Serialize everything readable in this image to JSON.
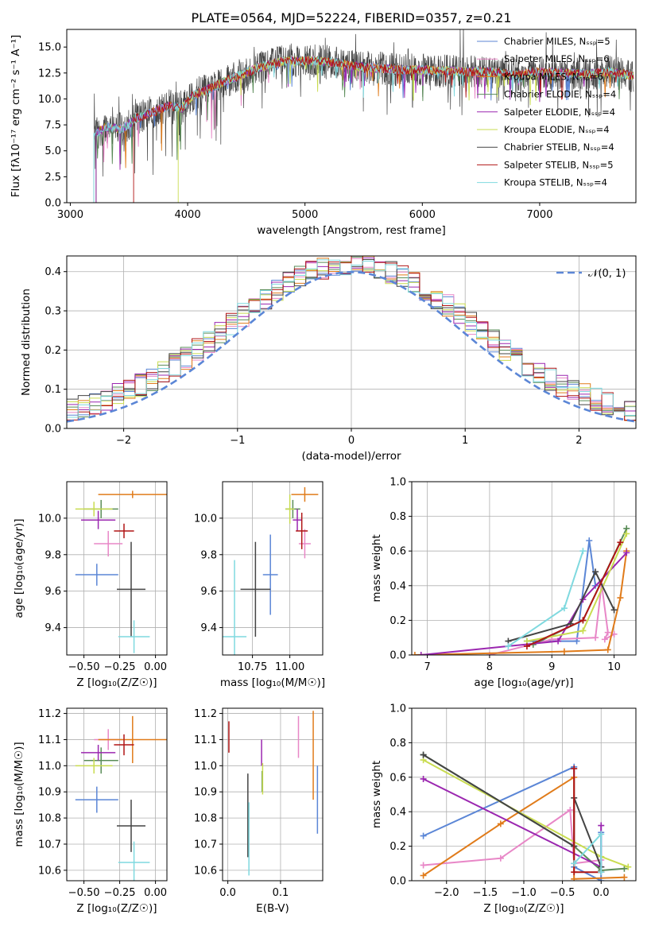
{
  "chart_data": [
    {
      "type": "line",
      "title": "PLATE=0564, MJD=52224, FIBERID=0357, z=0.21",
      "xlabel": "wavelength [Angstrom, rest frame]",
      "ylabel": "Flux [fλ10⁻¹⁷ erg cm⁻² s⁻¹ A⁻¹]",
      "xlim": [
        2970,
        7820
      ],
      "ylim": [
        0,
        16.7
      ],
      "xticks": [
        "3000",
        "4000",
        "5000",
        "6000",
        "7000"
      ],
      "yticks": [
        "0.0",
        "2.5",
        "5.0",
        "7.5",
        "10.0",
        "12.5",
        "15.0"
      ],
      "grid": false,
      "legend_position": "right",
      "spectrum_envelope": {
        "x": [
          3200,
          3300,
          3450,
          3550,
          3700,
          3850,
          3950,
          4050,
          4150,
          4300,
          4450,
          4600,
          4800,
          5000,
          5200,
          5400,
          5600,
          5800,
          6000,
          6200,
          6400,
          6600,
          6800,
          7000,
          7200,
          7400,
          7600,
          7800
        ],
        "y": [
          6.5,
          7.3,
          7.1,
          8.1,
          8.7,
          9.4,
          9.1,
          10.4,
          10.8,
          11.6,
          12.3,
          13.0,
          13.6,
          13.7,
          13.6,
          13.2,
          13.0,
          12.8,
          12.8,
          12.7,
          12.6,
          12.6,
          12.3,
          12.6,
          12.5,
          12.4,
          12.6,
          12.2
        ]
      },
      "model_cutoffs": [
        {
          "model": "Salpeter STELIB",
          "x_start": 3540
        },
        {
          "model": "Kroupa ELODIE",
          "x_start": 3920
        },
        {
          "model": "Chabrier STELIB",
          "x_start": 3200
        },
        {
          "model": "Kroupa STELIB",
          "x_start": 3200
        }
      ],
      "series": [
        {
          "name": "Chabrier MILES, Nₛₛₚ=5",
          "color": "#5b86d6"
        },
        {
          "name": "Salpeter MILES, Nₛₛₚ=6",
          "color": "#e887c7"
        },
        {
          "name": "Kroupa MILES, Nₛₛₚ=6",
          "color": "#e07b1a"
        },
        {
          "name": "Chabrier ELODIE, Nₛₛₚ=4",
          "color": "#5a8c58"
        },
        {
          "name": "Salpeter ELODIE, Nₛₛₚ=4",
          "color": "#9b27b0"
        },
        {
          "name": "Kroupa ELODIE, Nₛₛₚ=4",
          "color": "#c9dc50"
        },
        {
          "name": "Chabrier STELIB, Nₛₛₚ=4",
          "color": "#444444"
        },
        {
          "name": "Salpeter STELIB, Nₛₛₚ=5",
          "color": "#b01515"
        },
        {
          "name": "Kroupa STELIB, Nₛₛₚ=4",
          "color": "#7fd9df"
        }
      ]
    },
    {
      "type": "step",
      "xlabel": "(data-model)/error",
      "ylabel": "Normed distribution",
      "xlim": [
        -2.5,
        2.5
      ],
      "ylim": [
        0,
        0.44
      ],
      "xticks": [
        "−2",
        "−1",
        "0",
        "1",
        "2"
      ],
      "yticks": [
        "0.0",
        "0.1",
        "0.2",
        "0.3",
        "0.4"
      ],
      "grid": true,
      "legend": "𝒩(0, 1)",
      "legend_position": "top-right",
      "bin_edges": [
        -2.5,
        -2.4,
        -2.3,
        -2.2,
        -2.1,
        -2.0,
        -1.9,
        -1.8,
        -1.7,
        -1.6,
        -1.5,
        -1.4,
        -1.3,
        -1.2,
        -1.1,
        -1.0,
        -0.9,
        -0.8,
        -0.7,
        -0.6,
        -0.5,
        -0.4,
        -0.3,
        -0.2,
        -0.1,
        0.0,
        0.1,
        0.2,
        0.3,
        0.4,
        0.5,
        0.6,
        0.7,
        0.8,
        0.9,
        1.0,
        1.1,
        1.2,
        1.3,
        1.4,
        1.5,
        1.6,
        1.7,
        1.8,
        1.9,
        2.0,
        2.1,
        2.2,
        2.3,
        2.4,
        2.5
      ],
      "gaussian": {
        "mean": 0,
        "sigma": 1,
        "style": "dashed",
        "color": "#5b86d6"
      }
    },
    {
      "type": "scatter",
      "xlabel": "Z [log₁₀(Z/Z☉)]",
      "ylabel": "age  [log₁₀(age/yr)]",
      "xlim": [
        -0.62,
        0.08
      ],
      "ylim": [
        9.25,
        10.2
      ],
      "xticks": [
        "−0.50",
        "−0.25",
        "0.00"
      ],
      "yticks": [
        "9.4",
        "9.6",
        "9.8",
        "10.0"
      ],
      "grid": true,
      "points": [
        {
          "model": "Chabrier MILES",
          "x": -0.41,
          "xerr": 0.15,
          "y": 9.69,
          "yerr": 0.06,
          "color": "#5b86d6"
        },
        {
          "model": "Salpeter MILES",
          "x": -0.33,
          "xerr": 0.1,
          "y": 9.86,
          "yerr": 0.07,
          "color": "#e887c7"
        },
        {
          "model": "Kroupa MILES",
          "x": -0.16,
          "xerr": 0.24,
          "y": 10.13,
          "yerr": 0.02,
          "color": "#e07b1a"
        },
        {
          "model": "Chabrier ELODIE",
          "x": -0.38,
          "xerr": 0.12,
          "y": 10.05,
          "yerr": 0.05,
          "color": "#5a8c58"
        },
        {
          "model": "Salpeter ELODIE",
          "x": -0.4,
          "xerr": 0.12,
          "y": 9.99,
          "yerr": 0.05,
          "color": "#9b27b0"
        },
        {
          "model": "Kroupa ELODIE",
          "x": -0.43,
          "xerr": 0.13,
          "y": 10.05,
          "yerr": 0.04,
          "color": "#c9dc50"
        },
        {
          "model": "Chabrier STELIB",
          "x": -0.17,
          "xerr": 0.1,
          "y": 9.61,
          "yerr": 0.26,
          "color": "#444444"
        },
        {
          "model": "Salpeter STELIB",
          "x": -0.22,
          "xerr": 0.07,
          "y": 9.93,
          "yerr": 0.04,
          "color": "#b01515"
        },
        {
          "model": "Kroupa STELIB",
          "x": -0.15,
          "xerr": 0.11,
          "y": 9.35,
          "yerr": 0.09,
          "color": "#7fd9df"
        }
      ]
    },
    {
      "type": "scatter",
      "xlabel": "mass [log₁₀(M/M☉)]",
      "ylabel": "",
      "xlim": [
        10.55,
        11.22
      ],
      "ylim": [
        9.25,
        10.2
      ],
      "xticks": [
        "10.75",
        "11.00"
      ],
      "yticks": [
        "9.4",
        "9.6",
        "9.8",
        "10.0"
      ],
      "grid": true,
      "points": [
        {
          "model": "Chabrier MILES",
          "x": 10.87,
          "xerr": 0.05,
          "y": 9.69,
          "yerr": 0.22,
          "color": "#5b86d6"
        },
        {
          "model": "Salpeter MILES",
          "x": 11.1,
          "xerr": 0.04,
          "y": 9.86,
          "yerr": 0.08,
          "color": "#e887c7"
        },
        {
          "model": "Kroupa MILES",
          "x": 11.1,
          "xerr": 0.09,
          "y": 10.13,
          "yerr": 0.04,
          "color": "#e07b1a"
        },
        {
          "model": "Chabrier ELODIE",
          "x": 11.02,
          "xerr": 0.05,
          "y": 10.05,
          "yerr": 0.05,
          "color": "#5a8c58"
        },
        {
          "model": "Salpeter ELODIE",
          "x": 11.05,
          "xerr": 0.03,
          "y": 9.99,
          "yerr": 0.06,
          "color": "#9b27b0"
        },
        {
          "model": "Kroupa ELODIE",
          "x": 11.0,
          "xerr": 0.03,
          "y": 10.05,
          "yerr": 0.08,
          "color": "#c9dc50"
        },
        {
          "model": "Chabrier STELIB",
          "x": 10.77,
          "xerr": 0.1,
          "y": 9.61,
          "yerr": 0.26,
          "color": "#444444"
        },
        {
          "model": "Salpeter STELIB",
          "x": 11.08,
          "xerr": 0.04,
          "y": 9.93,
          "yerr": 0.1,
          "color": "#b01515"
        },
        {
          "model": "Kroupa STELIB",
          "x": 10.63,
          "xerr": 0.08,
          "y": 9.35,
          "yerr": 0.42,
          "color": "#7fd9df"
        }
      ]
    },
    {
      "type": "line",
      "xlabel": "age  [log₁₀(age/yr)]",
      "ylabel": "mass weight",
      "xlim": [
        6.75,
        10.35
      ],
      "ylim": [
        0,
        1.0
      ],
      "xticks": [
        "7",
        "8",
        "9",
        "10"
      ],
      "yticks": [
        "0.0",
        "0.2",
        "0.4",
        "0.6",
        "0.8",
        "1.0"
      ],
      "grid": true,
      "series": [
        {
          "name": "Chabrier MILES",
          "color": "#5b86d6",
          "x": [
            8.6,
            9.4,
            9.6,
            9.7
          ],
          "y": [
            0.08,
            0.08,
            0.66,
            0.4
          ]
        },
        {
          "name": "Salpeter MILES",
          "color": "#e887c7",
          "x": [
            8.0,
            9.0,
            9.7,
            9.8,
            9.9,
            9.85,
            10.0
          ],
          "y": [
            0.0,
            0.09,
            0.1,
            0.41,
            0.13,
            0.09,
            0.12
          ]
        },
        {
          "name": "Kroupa MILES",
          "color": "#e07b1a",
          "x": [
            6.8,
            9.2,
            9.9,
            10.1,
            10.2
          ],
          "y": [
            0.0,
            0.02,
            0.03,
            0.33,
            0.6
          ]
        },
        {
          "name": "Chabrier ELODIE",
          "color": "#5a8c58",
          "x": [
            8.7,
            9.5,
            10.2
          ],
          "y": [
            0.06,
            0.2,
            0.73
          ]
        },
        {
          "name": "Salpeter ELODIE",
          "color": "#9b27b0",
          "x": [
            6.9,
            9.1,
            9.5,
            10.2
          ],
          "y": [
            0.0,
            0.08,
            0.32,
            0.59
          ]
        },
        {
          "name": "Kroupa ELODIE",
          "color": "#c9dc50",
          "x": [
            8.6,
            9.5,
            10.2
          ],
          "y": [
            0.08,
            0.14,
            0.7
          ]
        },
        {
          "name": "Chabrier STELIB",
          "color": "#444444",
          "x": [
            8.3,
            9.3,
            9.7,
            10.0
          ],
          "y": [
            0.08,
            0.18,
            0.48,
            0.26
          ]
        },
        {
          "name": "Salpeter STELIB",
          "color": "#b01515",
          "x": [
            8.6,
            9.5,
            10.1
          ],
          "y": [
            0.05,
            0.2,
            0.65
          ]
        },
        {
          "name": "Kroupa STELIB",
          "color": "#7fd9df",
          "x": [
            8.3,
            9.2,
            9.5
          ],
          "y": [
            0.05,
            0.27,
            0.6
          ]
        }
      ]
    },
    {
      "type": "scatter",
      "xlabel": "Z [log₁₀(Z/Z☉)]",
      "ylabel": "mass [log₁₀(M/M☉)]",
      "xlim": [
        -0.62,
        0.08
      ],
      "ylim": [
        10.56,
        11.22
      ],
      "xticks": [
        "−0.50",
        "−0.25",
        "0.00"
      ],
      "yticks": [
        "10.6",
        "10.7",
        "10.8",
        "10.9",
        "11.0",
        "11.1",
        "11.2"
      ],
      "grid": true,
      "points": [
        {
          "model": "Chabrier MILES",
          "x": -0.41,
          "xerr": 0.15,
          "y": 10.87,
          "yerr": 0.05,
          "color": "#5b86d6"
        },
        {
          "model": "Salpeter MILES",
          "x": -0.33,
          "xerr": 0.1,
          "y": 11.1,
          "yerr": 0.04,
          "color": "#e887c7"
        },
        {
          "model": "Kroupa MILES",
          "x": -0.16,
          "xerr": 0.24,
          "y": 11.1,
          "yerr": 0.09,
          "color": "#e07b1a"
        },
        {
          "model": "Chabrier ELODIE",
          "x": -0.38,
          "xerr": 0.12,
          "y": 11.02,
          "yerr": 0.05,
          "color": "#5a8c58"
        },
        {
          "model": "Salpeter ELODIE",
          "x": -0.4,
          "xerr": 0.12,
          "y": 11.05,
          "yerr": 0.03,
          "color": "#9b27b0"
        },
        {
          "model": "Kroupa ELODIE",
          "x": -0.43,
          "xerr": 0.13,
          "y": 11.0,
          "yerr": 0.03,
          "color": "#c9dc50"
        },
        {
          "model": "Chabrier STELIB",
          "x": -0.17,
          "xerr": 0.1,
          "y": 10.77,
          "yerr": 0.1,
          "color": "#444444"
        },
        {
          "model": "Salpeter STELIB",
          "x": -0.22,
          "xerr": 0.07,
          "y": 11.08,
          "yerr": 0.04,
          "color": "#b01515"
        },
        {
          "model": "Kroupa STELIB",
          "x": -0.15,
          "xerr": 0.11,
          "y": 10.63,
          "yerr": 0.08,
          "color": "#7fd9df"
        }
      ]
    },
    {
      "type": "scatter",
      "xlabel": "E(B-V)",
      "ylabel": "",
      "xlim": [
        -0.01,
        0.18
      ],
      "ylim": [
        10.56,
        11.22
      ],
      "xticks": [
        "0.0",
        "0.1"
      ],
      "yticks": [
        "10.6",
        "10.7",
        "10.8",
        "10.9",
        "11.0",
        "11.1",
        "11.2"
      ],
      "grid": true,
      "points": [
        {
          "model": "Chabrier MILES",
          "x": 0.17,
          "y": 10.87,
          "yerr": 0.13,
          "color": "#5b86d6"
        },
        {
          "model": "Salpeter MILES",
          "x": 0.134,
          "y": 11.11,
          "yerr": 0.08,
          "color": "#e887c7"
        },
        {
          "model": "Kroupa MILES",
          "x": 0.162,
          "y": 11.04,
          "yerr": 0.17,
          "color": "#e07b1a"
        },
        {
          "model": "Chabrier ELODIE",
          "x": 0.065,
          "y": 10.94,
          "yerr": 0.04,
          "color": "#5a8c58"
        },
        {
          "model": "Salpeter ELODIE",
          "x": 0.064,
          "y": 11.05,
          "yerr": 0.05,
          "color": "#9b27b0"
        },
        {
          "model": "Kroupa ELODIE",
          "x": 0.066,
          "y": 10.95,
          "yerr": 0.06,
          "color": "#c9dc50"
        },
        {
          "model": "Chabrier STELIB",
          "x": 0.038,
          "y": 10.81,
          "yerr": 0.16,
          "color": "#444444"
        },
        {
          "model": "Salpeter STELIB",
          "x": 0.002,
          "y": 11.11,
          "yerr": 0.06,
          "color": "#b01515"
        },
        {
          "model": "Kroupa STELIB",
          "x": 0.04,
          "y": 10.72,
          "yerr": 0.14,
          "color": "#7fd9df"
        }
      ]
    },
    {
      "type": "line",
      "xlabel": "Z [log₁₀(Z/Z☉)]",
      "ylabel": "mass weight",
      "xlim": [
        -2.45,
        0.45
      ],
      "ylim": [
        0,
        1.0
      ],
      "xticks": [
        "−2.0",
        "−1.5",
        "−1.0",
        "−0.5",
        "0.0"
      ],
      "yticks": [
        "0.0",
        "0.2",
        "0.4",
        "0.6",
        "0.8",
        "1.0"
      ],
      "grid": true,
      "series": [
        {
          "name": "Chabrier MILES",
          "color": "#5b86d6",
          "x": [
            -2.3,
            -0.35,
            -0.35,
            0.0,
            0.0
          ],
          "y": [
            0.26,
            0.66,
            0.08,
            0.0,
            0.28
          ]
        },
        {
          "name": "Salpeter MILES",
          "color": "#e887c7",
          "x": [
            -2.3,
            -1.3,
            -0.4,
            -0.35,
            0.0
          ],
          "y": [
            0.09,
            0.13,
            0.41,
            0.1,
            0.12
          ]
        },
        {
          "name": "Kroupa MILES",
          "color": "#e07b1a",
          "x": [
            -2.3,
            -1.3,
            -0.35,
            -0.35,
            0.3
          ],
          "y": [
            0.03,
            0.33,
            0.6,
            0.01,
            0.02
          ]
        },
        {
          "name": "Chabrier ELODIE",
          "color": "#5a8c58",
          "x": [
            -2.3,
            -0.35,
            0.0,
            0.3
          ],
          "y": [
            0.73,
            0.2,
            0.06,
            0.07
          ]
        },
        {
          "name": "Salpeter ELODIE",
          "color": "#9b27b0",
          "x": [
            -2.3,
            0.0,
            0.0
          ],
          "y": [
            0.59,
            0.08,
            0.32
          ]
        },
        {
          "name": "Kroupa ELODIE",
          "color": "#c9dc50",
          "x": [
            -2.3,
            0.0,
            0.35
          ],
          "y": [
            0.7,
            0.14,
            0.08
          ]
        },
        {
          "name": "Chabrier STELIB",
          "color": "#444444",
          "x": [
            -2.3,
            -0.35,
            -0.35,
            0.0
          ],
          "y": [
            0.73,
            0.2,
            0.48,
            0.08
          ]
        },
        {
          "name": "Salpeter STELIB",
          "color": "#b01515",
          "x": [
            -0.35,
            -0.35,
            0.0
          ],
          "y": [
            0.65,
            0.05,
            0.05
          ]
        },
        {
          "name": "Kroupa STELIB",
          "color": "#7fd9df",
          "x": [
            -0.35,
            0.0,
            0.0
          ],
          "y": [
            0.1,
            0.27,
            0.05
          ]
        }
      ]
    }
  ]
}
